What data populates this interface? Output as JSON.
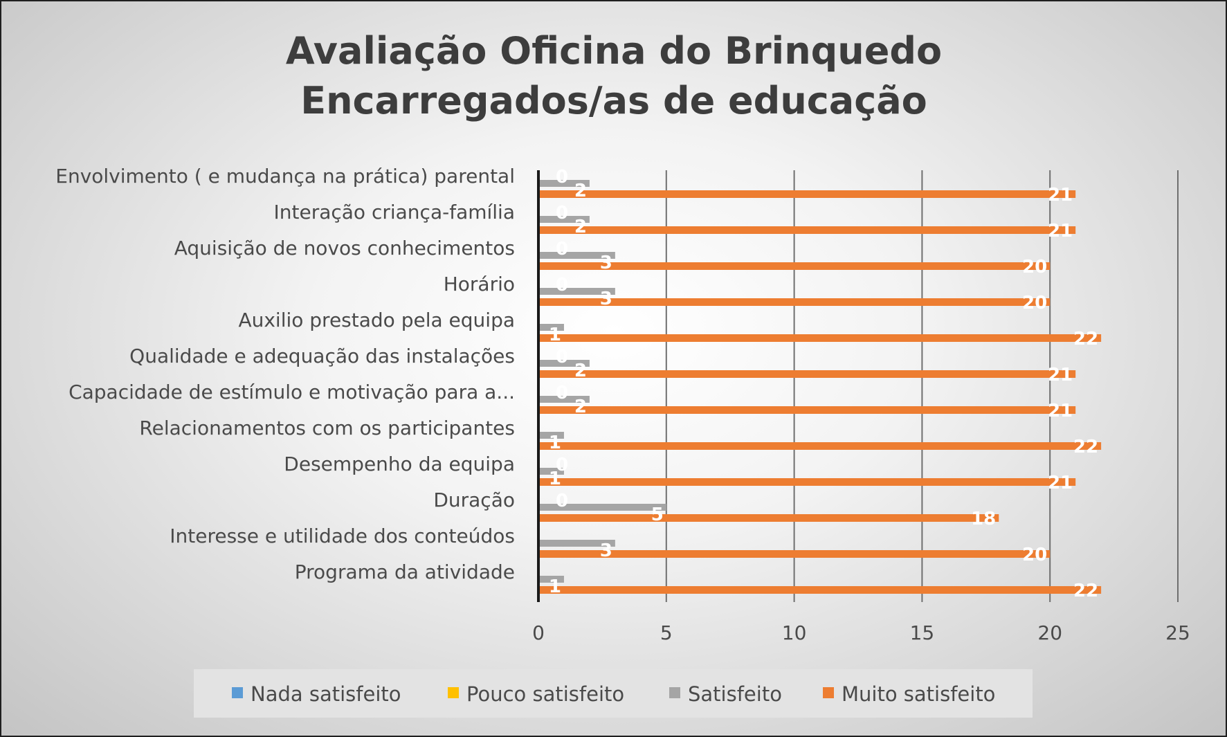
{
  "chart_data": {
    "type": "bar",
    "orientation": "horizontal",
    "title": [
      "Avaliação Oficina do Brinquedo",
      "Encarregados/as de educação"
    ],
    "categories": [
      "Envolvimento ( e mudança na prática) parental",
      "Interação criança-família",
      "Aquisição de novos conhecimentos",
      "Horário",
      "Auxilio prestado pela equipa",
      "Qualidade e adequação das instalações",
      "Capacidade de estímulo e motivação para a...",
      "Relacionamentos com os participantes",
      "Desempenho da equipa",
      "Duração",
      "Interesse  e utilidade dos conteúdos",
      "Programa da atividade"
    ],
    "series": [
      {
        "name": "Nada satisfeito",
        "color": "#5b9bd5",
        "values": [
          null,
          null,
          null,
          null,
          null,
          null,
          null,
          null,
          null,
          null,
          null,
          null
        ],
        "labels": [
          "",
          "",
          "",
          "",
          "",
          "",
          "",
          "",
          "",
          "",
          "",
          ""
        ]
      },
      {
        "name": "Pouco satisfeito",
        "color": "#ffc000",
        "values": [
          0,
          0,
          0,
          0,
          null,
          0,
          0,
          null,
          0,
          0,
          null,
          null
        ],
        "labels": [
          "0",
          "0",
          "0",
          "0",
          "",
          "0",
          "0",
          "",
          "0",
          "0",
          "",
          ""
        ]
      },
      {
        "name": "Satisfeito",
        "color": "#a5a5a5",
        "values": [
          2,
          2,
          3,
          3,
          1,
          2,
          2,
          1,
          1,
          5,
          3,
          1
        ],
        "labels": [
          "2",
          "2",
          "3",
          "3",
          "1",
          "2",
          "2",
          "1",
          "1",
          "5",
          "3",
          "1"
        ]
      },
      {
        "name": "Muito satisfeito",
        "color": "#ed7d31",
        "values": [
          21,
          21,
          20,
          20,
          22,
          21,
          21,
          22,
          21,
          18,
          20,
          22
        ],
        "labels": [
          "21",
          "21",
          "20",
          "20",
          "22",
          "21",
          "21",
          "22",
          "21",
          "18",
          "20",
          "22"
        ]
      }
    ],
    "xlim": [
      0,
      25
    ],
    "ticks": [
      "0",
      "5",
      "10",
      "15",
      "20",
      "25"
    ],
    "grid": true,
    "legend": "bottom"
  }
}
